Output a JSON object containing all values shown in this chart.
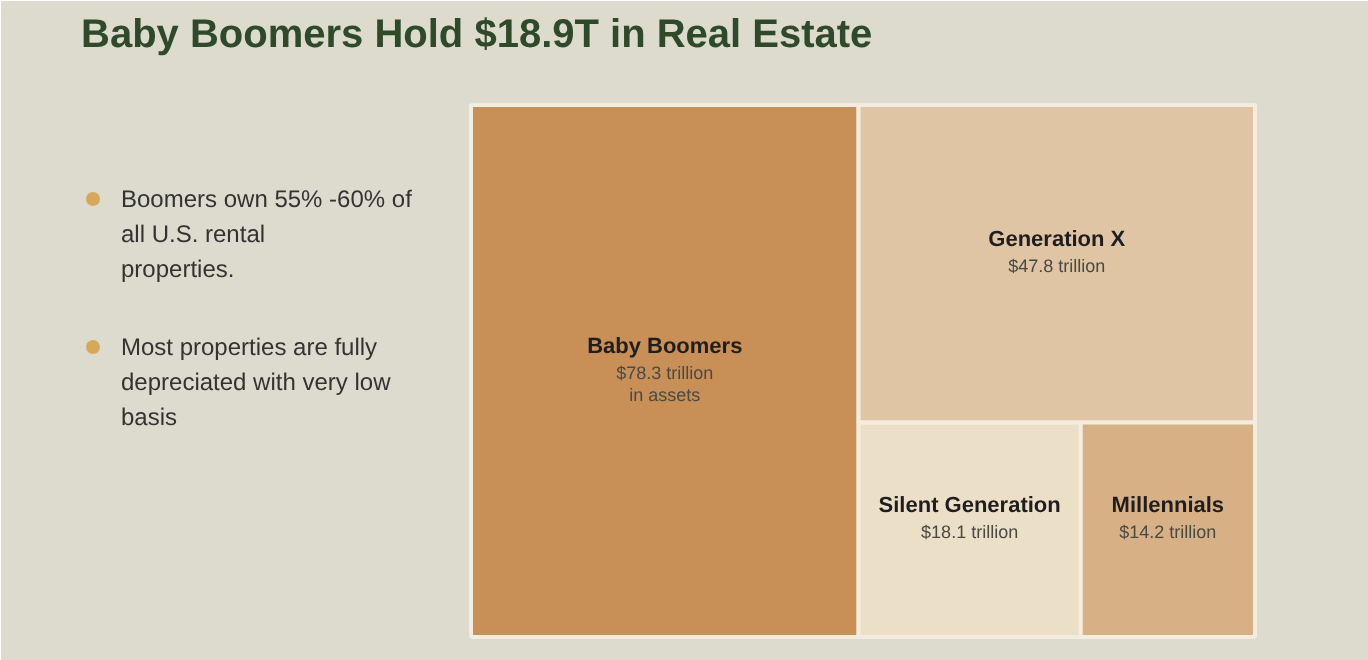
{
  "chart_data": {
    "type": "other",
    "title": "Baby Boomers Hold $18.9T in Real Estate",
    "categories": [
      "Baby Boomers",
      "Generation X",
      "Silent Generation",
      "Millennials"
    ],
    "values": [
      78.3,
      47.8,
      18.1,
      14.2
    ],
    "value_labels": [
      "$78.3 trillion\nin assets",
      "$47.8 trillion",
      "$18.1 trillion",
      "$14.2 trillion"
    ],
    "colors": [
      "#c88f57",
      "#dfc5a3",
      "#ebdfc8",
      "#d7b185"
    ],
    "annotations": [
      "Boomers own 55% -60% of all U.S. rental properties.",
      "Most properties are fully depreciated with very low basis"
    ]
  }
}
